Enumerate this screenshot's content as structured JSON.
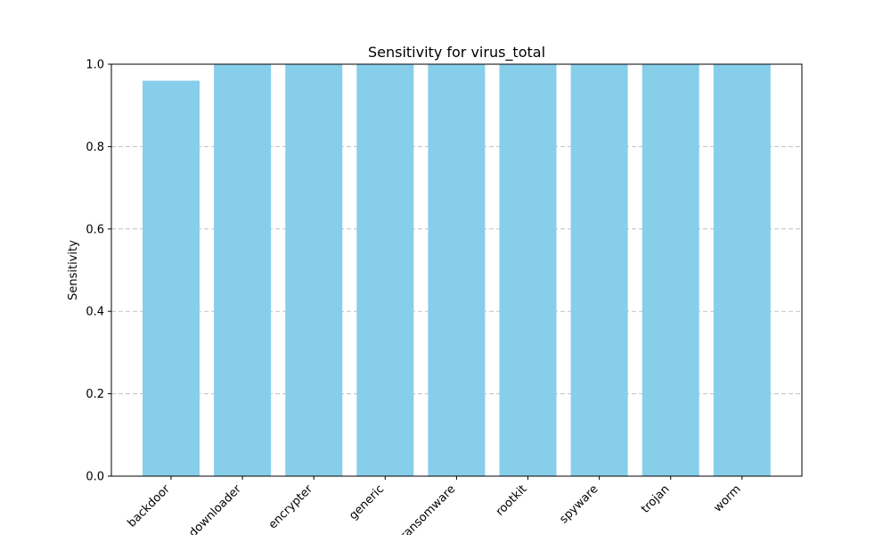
{
  "chart_data": {
    "type": "bar",
    "title": "Sensitivity for virus_total",
    "xlabel": "",
    "ylabel": "Sensitivity",
    "categories": [
      "backdoor",
      "downloader",
      "encrypter",
      "generic",
      "ransomware",
      "rootkit",
      "spyware",
      "trojan",
      "worm"
    ],
    "values": [
      0.96,
      1.0,
      1.0,
      1.0,
      1.0,
      1.0,
      1.0,
      1.0,
      1.0
    ],
    "ylim": [
      0,
      1.0
    ],
    "yticks": [
      "0.0",
      "0.2",
      "0.4",
      "0.6",
      "0.8",
      "1.0"
    ],
    "grid": "y-dashed",
    "bar_color": "#87CEEB",
    "grid_color": "#c0c0c0"
  }
}
